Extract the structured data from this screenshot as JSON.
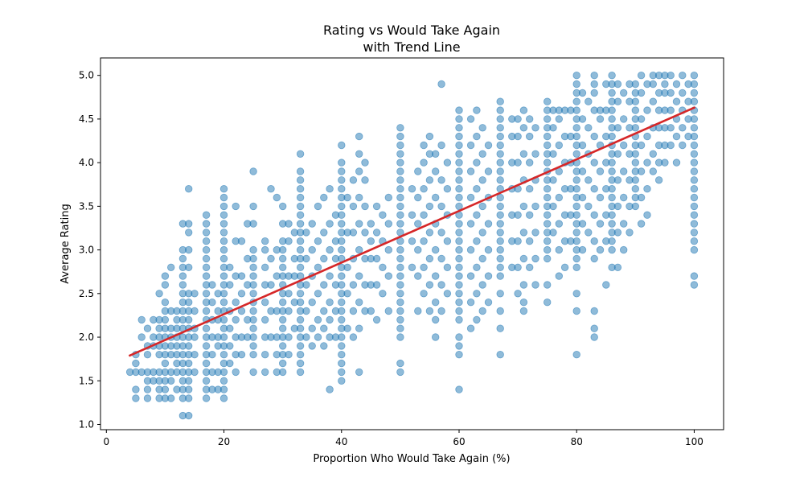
{
  "chart_data": {
    "type": "scatter",
    "title": "Rating vs Would Take Again\nwith Trend Line",
    "title_lines": [
      "Rating vs Would Take Again",
      "with Trend Line"
    ],
    "xlabel": "Proportion Who Would Take Again (%)",
    "ylabel": "Average Rating",
    "xlim": [
      -1,
      105
    ],
    "ylim": [
      0.94,
      5.2
    ],
    "xticks": [
      0,
      20,
      40,
      60,
      80,
      100
    ],
    "xtick_labels": [
      "0",
      "20",
      "40",
      "60",
      "80",
      "100"
    ],
    "yticks": [
      1.0,
      1.5,
      2.0,
      2.5,
      3.0,
      3.5,
      4.0,
      4.5,
      5.0
    ],
    "ytick_labels": [
      "1.0",
      "1.5",
      "2.0",
      "2.5",
      "3.0",
      "3.5",
      "4.0",
      "4.5",
      "5.0"
    ],
    "grid": false,
    "legend": "none",
    "point_color": "#1f77b4",
    "trend_color": "#d62728",
    "columns": [
      {
        "x": 4,
        "y": [
          1.6
        ]
      },
      {
        "x": 5,
        "y": [
          1.3,
          1.4,
          1.6,
          1.7,
          1.8
        ]
      },
      {
        "x": 6,
        "y": [
          1.6,
          2.0,
          2.2
        ]
      },
      {
        "x": 7,
        "y": [
          1.3,
          1.4,
          1.5,
          1.6,
          1.8,
          1.9,
          2.1
        ]
      },
      {
        "x": 8,
        "y": [
          1.5,
          1.6,
          1.9,
          2.0,
          2.2
        ]
      },
      {
        "x": 9,
        "y": [
          1.3,
          1.4,
          1.5,
          1.6,
          1.8,
          1.9,
          2.0,
          2.1,
          2.2,
          2.5
        ]
      },
      {
        "x": 10,
        "y": [
          1.3,
          1.4,
          1.5,
          1.6,
          1.7,
          1.8,
          1.9,
          2.0,
          2.1,
          2.2,
          2.3,
          2.4,
          2.6,
          2.7
        ]
      },
      {
        "x": 11,
        "y": [
          1.3,
          1.5,
          1.6,
          1.8,
          1.9,
          2.0,
          2.1,
          2.3,
          2.8
        ]
      },
      {
        "x": 12,
        "y": [
          1.4,
          1.6,
          1.7,
          1.8,
          1.9,
          2.0,
          2.1,
          2.2,
          2.3
        ]
      },
      {
        "x": 13,
        "y": [
          1.1,
          1.3,
          1.4,
          1.5,
          1.6,
          1.7,
          1.8,
          1.9,
          2.0,
          2.1,
          2.2,
          2.3,
          2.4,
          2.5,
          2.6,
          2.7,
          2.8,
          2.9,
          3.0,
          3.3
        ]
      },
      {
        "x": 14,
        "y": [
          1.1,
          1.3,
          1.4,
          1.5,
          1.6,
          1.7,
          1.8,
          1.9,
          2.0,
          2.1,
          2.2,
          2.3,
          2.4,
          2.5,
          2.8,
          3.0,
          3.2,
          3.3,
          3.7
        ]
      },
      {
        "x": 15,
        "y": [
          1.6,
          1.8,
          2.0,
          2.1,
          2.3,
          2.5
        ]
      },
      {
        "x": 17,
        "y": [
          1.3,
          1.4,
          1.5,
          1.6,
          1.7,
          1.8,
          1.9,
          2.0,
          2.1,
          2.2,
          2.3,
          2.4,
          2.5,
          2.6,
          2.7,
          2.8,
          2.9,
          3.0,
          3.1,
          3.2,
          3.3,
          3.4
        ]
      },
      {
        "x": 18,
        "y": [
          1.4,
          1.6,
          1.8,
          2.0,
          2.2,
          2.4,
          2.6
        ]
      },
      {
        "x": 19,
        "y": [
          1.4,
          1.6,
          1.9,
          2.0,
          2.2,
          2.3,
          2.5
        ]
      },
      {
        "x": 20,
        "y": [
          1.3,
          1.4,
          1.5,
          1.6,
          1.7,
          1.8,
          1.9,
          2.0,
          2.1,
          2.2,
          2.3,
          2.4,
          2.5,
          2.6,
          2.7,
          2.8,
          2.9,
          3.0,
          3.1,
          3.2,
          3.3,
          3.4,
          3.5,
          3.6,
          3.7
        ]
      },
      {
        "x": 21,
        "y": [
          1.7,
          1.9,
          2.1,
          2.3,
          2.6,
          2.8
        ]
      },
      {
        "x": 22,
        "y": [
          1.6,
          1.8,
          2.0,
          2.2,
          2.4,
          2.7,
          3.1,
          3.5
        ]
      },
      {
        "x": 23,
        "y": [
          1.8,
          2.0,
          2.3,
          2.5,
          2.7,
          3.1
        ]
      },
      {
        "x": 24,
        "y": [
          2.0,
          2.2,
          2.6,
          2.9,
          3.3
        ]
      },
      {
        "x": 25,
        "y": [
          1.6,
          1.8,
          1.9,
          2.0,
          2.1,
          2.2,
          2.3,
          2.4,
          2.5,
          2.6,
          2.7,
          2.8,
          2.9,
          3.0,
          3.3,
          3.5,
          3.9
        ]
      },
      {
        "x": 27,
        "y": [
          1.6,
          1.8,
          2.0,
          2.2,
          2.4,
          2.6,
          2.8,
          3.0,
          3.1
        ]
      },
      {
        "x": 28,
        "y": [
          2.0,
          2.3,
          2.6,
          2.9,
          3.7
        ]
      },
      {
        "x": 29,
        "y": [
          1.6,
          1.8,
          2.0,
          2.3,
          2.7,
          3.0,
          3.6
        ]
      },
      {
        "x": 30,
        "y": [
          1.6,
          1.7,
          1.8,
          1.9,
          2.0,
          2.1,
          2.2,
          2.3,
          2.4,
          2.5,
          2.6,
          2.7,
          2.8,
          2.9,
          3.0,
          3.1,
          3.3,
          3.5
        ]
      },
      {
        "x": 31,
        "y": [
          1.8,
          2.0,
          2.3,
          2.5,
          2.7,
          3.1,
          3.3
        ]
      },
      {
        "x": 32,
        "y": [
          2.1,
          2.4,
          2.7,
          2.9,
          3.2
        ]
      },
      {
        "x": 33,
        "y": [
          1.6,
          1.7,
          1.8,
          1.9,
          2.0,
          2.1,
          2.2,
          2.3,
          2.4,
          2.5,
          2.6,
          2.7,
          2.8,
          2.9,
          3.0,
          3.1,
          3.2,
          3.3,
          3.4,
          3.5,
          3.6,
          3.7,
          3.8,
          3.9,
          4.1
        ]
      },
      {
        "x": 34,
        "y": [
          2.0,
          2.3,
          2.6,
          2.9,
          3.2
        ]
      },
      {
        "x": 35,
        "y": [
          1.9,
          2.1,
          2.4,
          2.7,
          3.0,
          3.3
        ]
      },
      {
        "x": 36,
        "y": [
          2.0,
          2.2,
          2.5,
          2.8,
          3.1,
          3.5
        ]
      },
      {
        "x": 37,
        "y": [
          1.9,
          2.1,
          2.3,
          2.6,
          2.9,
          3.2,
          3.6
        ]
      },
      {
        "x": 38,
        "y": [
          1.4,
          2.0,
          2.2,
          2.4,
          2.7,
          3.0,
          3.3,
          3.7
        ]
      },
      {
        "x": 39,
        "y": [
          2.0,
          2.3,
          2.6,
          2.9,
          3.1,
          3.4
        ]
      },
      {
        "x": 40,
        "y": [
          1.5,
          1.6,
          1.7,
          1.8,
          1.9,
          2.0,
          2.1,
          2.2,
          2.3,
          2.4,
          2.5,
          2.6,
          2.7,
          2.8,
          2.9,
          3.0,
          3.1,
          3.2,
          3.3,
          3.4,
          3.5,
          3.6,
          3.7,
          3.8,
          3.9,
          4.0,
          4.2
        ]
      },
      {
        "x": 41,
        "y": [
          2.1,
          2.5,
          2.8,
          3.2,
          3.6
        ]
      },
      {
        "x": 42,
        "y": [
          2.0,
          2.3,
          2.6,
          2.9,
          3.2,
          3.5,
          3.8
        ]
      },
      {
        "x": 43,
        "y": [
          1.6,
          2.1,
          2.4,
          2.7,
          3.0,
          3.3,
          3.6,
          3.9,
          4.1,
          4.3
        ]
      },
      {
        "x": 44,
        "y": [
          2.3,
          2.6,
          2.9,
          3.2,
          3.5,
          3.8,
          4.0
        ]
      },
      {
        "x": 45,
        "y": [
          2.3,
          2.6,
          2.9,
          3.1,
          3.3
        ]
      },
      {
        "x": 46,
        "y": [
          2.2,
          2.6,
          2.9,
          3.2,
          3.5
        ]
      },
      {
        "x": 47,
        "y": [
          2.5,
          2.8,
          3.1,
          3.4
        ]
      },
      {
        "x": 48,
        "y": [
          2.3,
          2.7,
          3.0,
          3.3,
          3.6
        ]
      },
      {
        "x": 50,
        "y": [
          1.6,
          1.7,
          2.0,
          2.1,
          2.2,
          2.3,
          2.4,
          2.5,
          2.6,
          2.7,
          2.8,
          2.9,
          3.0,
          3.1,
          3.2,
          3.3,
          3.4,
          3.5,
          3.6,
          3.7,
          3.8,
          3.9,
          4.0,
          4.1,
          4.2,
          4.3,
          4.4
        ]
      },
      {
        "x": 52,
        "y": [
          2.8,
          3.1,
          3.4,
          3.7
        ]
      },
      {
        "x": 53,
        "y": [
          2.3,
          2.7,
          3.0,
          3.3,
          3.6,
          3.9
        ]
      },
      {
        "x": 54,
        "y": [
          2.5,
          2.8,
          3.1,
          3.4,
          3.7,
          4.0,
          4.2
        ]
      },
      {
        "x": 55,
        "y": [
          2.3,
          2.6,
          2.9,
          3.2,
          3.5,
          3.8,
          4.1,
          4.3
        ]
      },
      {
        "x": 56,
        "y": [
          2.0,
          2.2,
          2.4,
          2.7,
          3.0,
          3.3,
          3.6,
          3.9,
          4.1
        ]
      },
      {
        "x": 57,
        "y": [
          2.3,
          2.6,
          2.9,
          3.2,
          3.5,
          3.8,
          4.2,
          4.9
        ]
      },
      {
        "x": 58,
        "y": [
          2.5,
          2.8,
          3.1,
          3.4,
          3.7,
          4.0
        ]
      },
      {
        "x": 60,
        "y": [
          1.4,
          1.8,
          1.9,
          2.0,
          2.2,
          2.3,
          2.4,
          2.5,
          2.6,
          2.7,
          2.8,
          2.9,
          3.0,
          3.1,
          3.2,
          3.3,
          3.4,
          3.5,
          3.6,
          3.7,
          3.8,
          3.9,
          4.0,
          4.1,
          4.2,
          4.3,
          4.4,
          4.5,
          4.6
        ]
      },
      {
        "x": 62,
        "y": [
          2.1,
          2.4,
          2.7,
          3.0,
          3.3,
          3.6,
          3.9,
          4.2,
          4.5
        ]
      },
      {
        "x": 63,
        "y": [
          2.2,
          2.5,
          2.8,
          3.1,
          3.4,
          3.7,
          4.0,
          4.3,
          4.6
        ]
      },
      {
        "x": 64,
        "y": [
          2.3,
          2.6,
          2.9,
          3.2,
          3.5,
          3.8,
          4.1,
          4.4
        ]
      },
      {
        "x": 65,
        "y": [
          2.4,
          2.7,
          3.0,
          3.3,
          3.6,
          3.9,
          4.2
        ]
      },
      {
        "x": 67,
        "y": [
          1.8,
          2.1,
          2.3,
          2.5,
          2.7,
          2.8,
          2.9,
          3.0,
          3.1,
          3.2,
          3.3,
          3.4,
          3.5,
          3.6,
          3.7,
          3.8,
          3.9,
          4.0,
          4.1,
          4.2,
          4.3,
          4.4,
          4.5,
          4.6,
          4.7
        ]
      },
      {
        "x": 69,
        "y": [
          2.8,
          3.1,
          3.4,
          3.7,
          4.0,
          4.3,
          4.5
        ]
      },
      {
        "x": 70,
        "y": [
          2.5,
          2.8,
          3.1,
          3.4,
          3.7,
          4.0,
          4.3,
          4.5
        ]
      },
      {
        "x": 71,
        "y": [
          2.3,
          2.4,
          2.6,
          2.9,
          3.2,
          3.5,
          3.8,
          4.1,
          4.4,
          4.6
        ]
      },
      {
        "x": 72,
        "y": [
          2.8,
          3.1,
          3.4,
          3.7,
          4.0,
          4.3,
          4.5
        ]
      },
      {
        "x": 73,
        "y": [
          2.6,
          2.9,
          3.2,
          3.5,
          3.8,
          4.1,
          4.4
        ]
      },
      {
        "x": 75,
        "y": [
          2.4,
          2.6,
          2.9,
          3.0,
          3.1,
          3.2,
          3.3,
          3.4,
          3.5,
          3.6,
          3.7,
          3.8,
          3.9,
          4.0,
          4.1,
          4.2,
          4.3,
          4.4,
          4.5,
          4.6,
          4.7
        ]
      },
      {
        "x": 76,
        "y": [
          3.2,
          3.5,
          3.8,
          4.1,
          4.4,
          4.6
        ]
      },
      {
        "x": 77,
        "y": [
          2.7,
          3.0,
          3.3,
          3.6,
          3.9,
          4.2,
          4.5,
          4.6
        ]
      },
      {
        "x": 78,
        "y": [
          2.8,
          3.1,
          3.4,
          3.7,
          4.0,
          4.3,
          4.6
        ]
      },
      {
        "x": 79,
        "y": [
          3.1,
          3.4,
          3.7,
          4.0,
          4.3,
          4.6
        ]
      },
      {
        "x": 80,
        "y": [
          1.8,
          2.3,
          2.5,
          2.8,
          2.9,
          3.0,
          3.1,
          3.2,
          3.3,
          3.4,
          3.5,
          3.6,
          3.7,
          3.8,
          3.9,
          4.0,
          4.1,
          4.2,
          4.3,
          4.4,
          4.5,
          4.6,
          4.7,
          4.8,
          4.9,
          5.0
        ]
      },
      {
        "x": 81,
        "y": [
          3.0,
          3.3,
          3.6,
          3.9,
          4.2,
          4.5,
          4.8
        ]
      },
      {
        "x": 82,
        "y": [
          3.2,
          3.5,
          3.8,
          4.1,
          4.4,
          4.7
        ]
      },
      {
        "x": 83,
        "y": [
          2.0,
          2.1,
          2.3,
          2.9,
          3.1,
          3.4,
          3.7,
          4.0,
          4.3,
          4.6,
          4.8,
          4.9,
          5.0
        ]
      },
      {
        "x": 84,
        "y": [
          3.0,
          3.3,
          3.6,
          3.9,
          4.2,
          4.5,
          4.6
        ]
      },
      {
        "x": 85,
        "y": [
          2.6,
          3.1,
          3.4,
          3.7,
          4.0,
          4.3,
          4.6,
          4.9
        ]
      },
      {
        "x": 86,
        "y": [
          2.8,
          3.0,
          3.1,
          3.2,
          3.3,
          3.4,
          3.5,
          3.6,
          3.7,
          3.8,
          3.9,
          4.0,
          4.1,
          4.2,
          4.3,
          4.4,
          4.5,
          4.6,
          4.7,
          4.8,
          4.9,
          5.0
        ]
      },
      {
        "x": 87,
        "y": [
          2.8,
          3.2,
          3.5,
          3.8,
          4.1,
          4.4,
          4.7,
          4.9
        ]
      },
      {
        "x": 88,
        "y": [
          3.0,
          3.3,
          3.6,
          3.9,
          4.2,
          4.5,
          4.8
        ]
      },
      {
        "x": 89,
        "y": [
          3.2,
          3.5,
          3.8,
          4.1,
          4.4,
          4.7,
          4.9
        ]
      },
      {
        "x": 90,
        "y": [
          3.5,
          3.6,
          3.7,
          3.8,
          3.9,
          4.0,
          4.1,
          4.2,
          4.3,
          4.4,
          4.5,
          4.6,
          4.7,
          4.8,
          4.9
        ]
      },
      {
        "x": 91,
        "y": [
          3.3,
          3.6,
          3.9,
          4.2,
          4.5,
          4.8,
          5.0
        ]
      },
      {
        "x": 92,
        "y": [
          3.4,
          3.7,
          4.0,
          4.3,
          4.6,
          4.9
        ]
      },
      {
        "x": 93,
        "y": [
          3.9,
          4.1,
          4.4,
          4.7,
          4.9,
          5.0
        ]
      },
      {
        "x": 94,
        "y": [
          3.8,
          4.0,
          4.2,
          4.4,
          4.6,
          4.8,
          5.0
        ]
      },
      {
        "x": 95,
        "y": [
          4.0,
          4.2,
          4.4,
          4.6,
          4.8,
          4.9,
          5.0
        ]
      },
      {
        "x": 96,
        "y": [
          4.2,
          4.4,
          4.6,
          4.8,
          5.0
        ]
      },
      {
        "x": 97,
        "y": [
          4.0,
          4.3,
          4.5,
          4.7,
          4.9
        ]
      },
      {
        "x": 98,
        "y": [
          4.2,
          4.4,
          4.6,
          4.8,
          5.0
        ]
      },
      {
        "x": 99,
        "y": [
          4.3,
          4.5,
          4.7,
          4.9
        ]
      },
      {
        "x": 100,
        "y": [
          2.6,
          2.7,
          3.0,
          3.1,
          3.2,
          3.3,
          3.4,
          3.5,
          3.6,
          3.7,
          3.8,
          3.9,
          4.0,
          4.1,
          4.2,
          4.3,
          4.4,
          4.5,
          4.6,
          4.7,
          4.8,
          4.9,
          5.0
        ]
      }
    ],
    "trend_line": {
      "x": [
        4,
        100
      ],
      "y": [
        1.79,
        4.63
      ]
    }
  }
}
